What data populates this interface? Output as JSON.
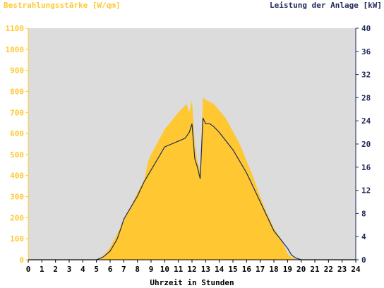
{
  "chart_data": {
    "type": "area",
    "title_left": "Bestrahlungsstärke [W/qm]",
    "title_right": "Leistung der Anlage [kW]",
    "xlabel": "Uhrzeit in Stunden",
    "x_ticks": [
      "0",
      "1",
      "2",
      "3",
      "4",
      "5",
      "6",
      "7",
      "8",
      "9",
      "10",
      "11",
      "12",
      "13",
      "14",
      "15",
      "16",
      "17",
      "18",
      "19",
      "20",
      "21",
      "22",
      "23",
      "24"
    ],
    "xlim": [
      0,
      24
    ],
    "y_left_ticks": [
      "0",
      "100",
      "200",
      "300",
      "400",
      "500",
      "600",
      "700",
      "800",
      "900",
      "1000",
      "1100"
    ],
    "ylim_left": [
      0,
      1100
    ],
    "y_right_ticks": [
      "0",
      "4",
      "8",
      "12",
      "16",
      "20",
      "24",
      "28",
      "32",
      "36",
      "40"
    ],
    "ylim_right": [
      0,
      40
    ],
    "grid": false,
    "background": "#dcdcdc",
    "colors": {
      "irradiance": "#ffc832",
      "power": "#1e2a5a",
      "left_axis": "#ffc832",
      "right_axis": "#1e2a5a"
    },
    "series": [
      {
        "axis": "left",
        "points": [
          [
            0,
            0
          ],
          [
            5.0,
            0
          ],
          [
            5.3,
            5
          ],
          [
            5.6,
            25
          ],
          [
            6.0,
            60
          ],
          [
            6.5,
            120
          ],
          [
            7.0,
            190
          ],
          [
            7.5,
            250
          ],
          [
            8.0,
            320
          ],
          [
            8.5,
            380
          ],
          [
            8.8,
            470
          ],
          [
            9.0,
            500
          ],
          [
            9.5,
            560
          ],
          [
            10.0,
            620
          ],
          [
            10.5,
            660
          ],
          [
            11.0,
            700
          ],
          [
            11.3,
            720
          ],
          [
            11.6,
            740
          ],
          [
            11.8,
            700
          ],
          [
            12.0,
            760
          ],
          [
            12.2,
            560
          ],
          [
            12.4,
            470
          ],
          [
            12.6,
            420
          ],
          [
            12.8,
            770
          ],
          [
            13.0,
            760
          ],
          [
            13.3,
            750
          ],
          [
            13.6,
            740
          ],
          [
            14.0,
            710
          ],
          [
            14.5,
            670
          ],
          [
            15.0,
            610
          ],
          [
            15.5,
            550
          ],
          [
            16.0,
            470
          ],
          [
            16.5,
            390
          ],
          [
            17.0,
            300
          ],
          [
            17.5,
            220
          ],
          [
            18.0,
            150
          ],
          [
            18.5,
            100
          ],
          [
            18.8,
            60
          ],
          [
            19.0,
            30
          ],
          [
            19.3,
            12
          ],
          [
            19.6,
            3
          ],
          [
            20.0,
            0
          ],
          [
            24,
            0
          ]
        ]
      },
      {
        "axis": "right",
        "points": [
          [
            0,
            0
          ],
          [
            5.0,
            0
          ],
          [
            5.5,
            0.5
          ],
          [
            6.0,
            1.5
          ],
          [
            6.5,
            3.5
          ],
          [
            6.8,
            5.5
          ],
          [
            7.0,
            7.0
          ],
          [
            7.5,
            9.0
          ],
          [
            8.0,
            11.0
          ],
          [
            8.5,
            13.5
          ],
          [
            9.0,
            15.5
          ],
          [
            9.5,
            17.5
          ],
          [
            10.0,
            19.5
          ],
          [
            10.5,
            20.0
          ],
          [
            11.0,
            20.5
          ],
          [
            11.5,
            21.0
          ],
          [
            11.8,
            22.0
          ],
          [
            12.0,
            23.5
          ],
          [
            12.2,
            17.5
          ],
          [
            12.4,
            16.0
          ],
          [
            12.6,
            14.0
          ],
          [
            12.8,
            24.5
          ],
          [
            13.0,
            23.5
          ],
          [
            13.3,
            23.5
          ],
          [
            13.6,
            23.0
          ],
          [
            14.0,
            22.0
          ],
          [
            14.5,
            20.5
          ],
          [
            15.0,
            19.0
          ],
          [
            15.5,
            17.0
          ],
          [
            16.0,
            15.0
          ],
          [
            16.5,
            12.5
          ],
          [
            17.0,
            10.0
          ],
          [
            17.5,
            7.5
          ],
          [
            18.0,
            5.0
          ],
          [
            18.5,
            3.5
          ],
          [
            19.0,
            2.0
          ],
          [
            19.3,
            0.8
          ],
          [
            19.6,
            0.3
          ],
          [
            20.0,
            0
          ],
          [
            24,
            0
          ]
        ]
      }
    ]
  }
}
